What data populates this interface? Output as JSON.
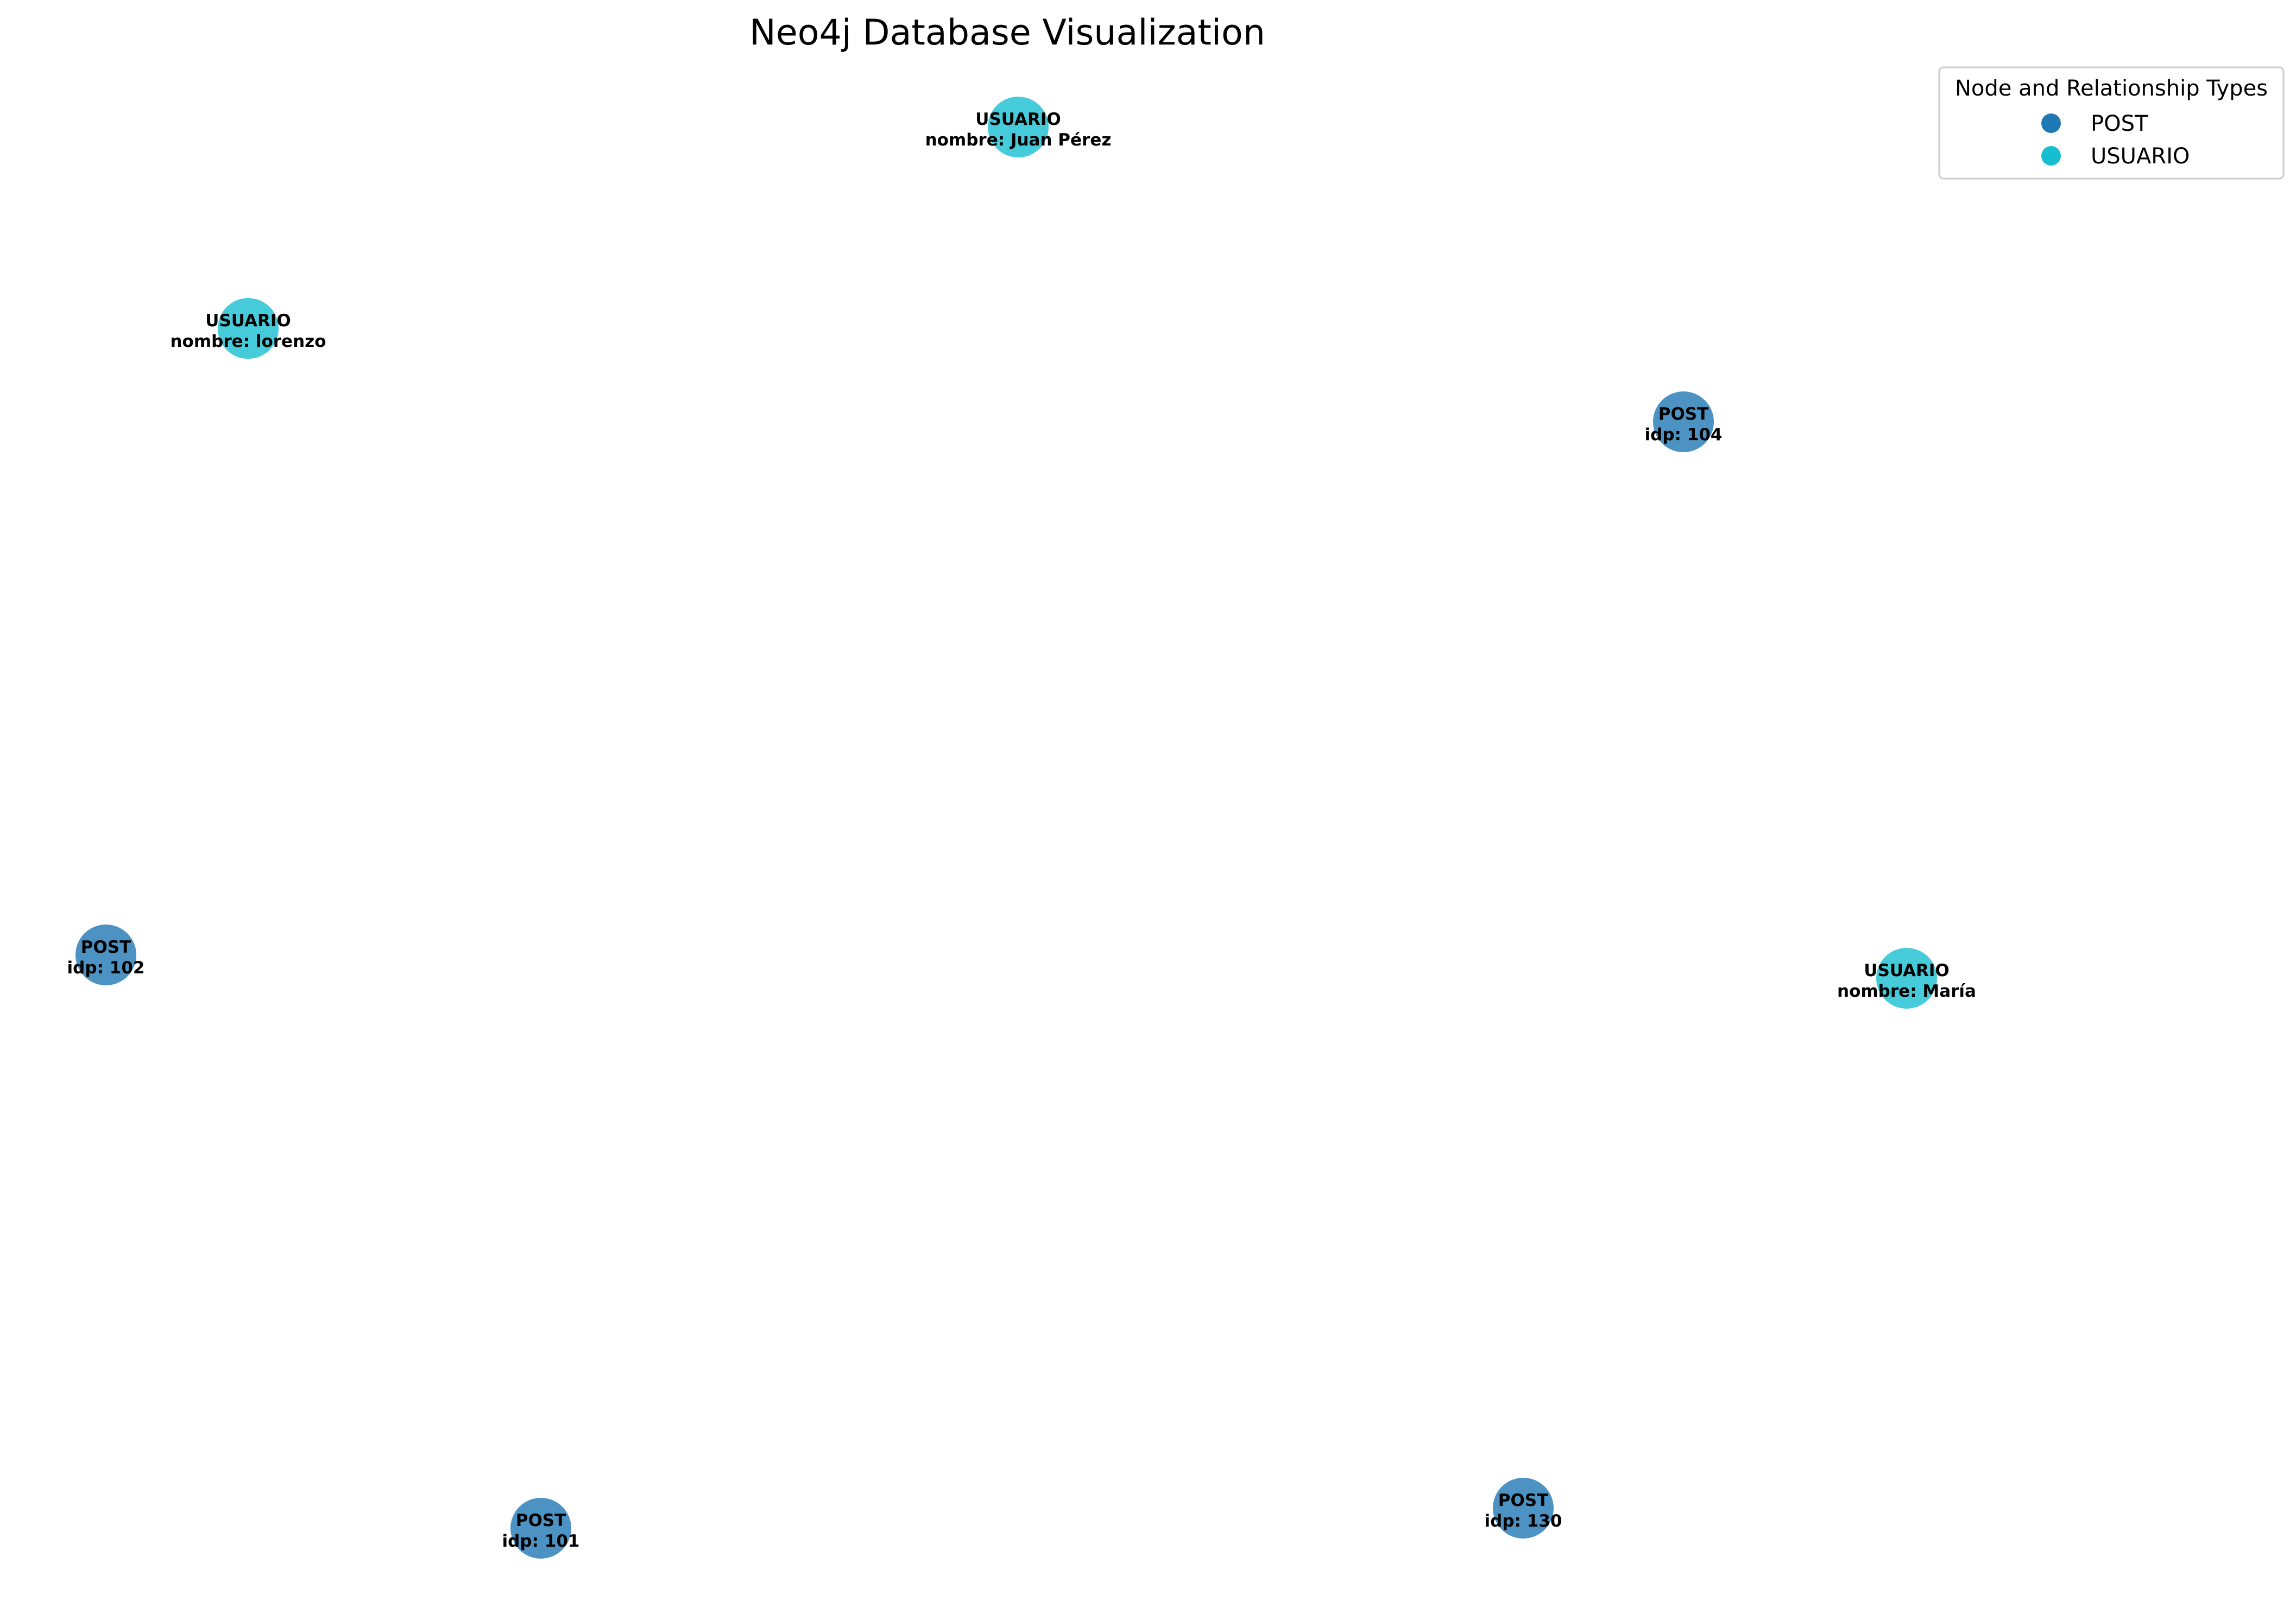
{
  "title": "Neo4j Database Visualization",
  "colors": {
    "POST": "#1f77b4",
    "USUARIO": "#17becf"
  },
  "legend": {
    "title": "Node and Relationship Types",
    "items": [
      {
        "label": "POST",
        "type": "POST"
      },
      {
        "label": "USUARIO",
        "type": "USUARIO"
      }
    ]
  },
  "nodes": [
    {
      "id": "usuario-juan",
      "type": "USUARIO",
      "line1": "USUARIO",
      "line2": "nombre: Juan Pérez"
    },
    {
      "id": "usuario-lorenzo",
      "type": "USUARIO",
      "line1": "USUARIO",
      "line2": "nombre: lorenzo"
    },
    {
      "id": "post-104",
      "type": "POST",
      "line1": "POST",
      "line2": "idp: 104"
    },
    {
      "id": "post-102",
      "type": "POST",
      "line1": "POST",
      "line2": "idp: 102"
    },
    {
      "id": "usuario-maria",
      "type": "USUARIO",
      "line1": "USUARIO",
      "line2": "nombre: María"
    },
    {
      "id": "post-130",
      "type": "POST",
      "line1": "POST",
      "line2": "idp: 130"
    },
    {
      "id": "post-101",
      "type": "POST",
      "line1": "POST",
      "line2": "idp: 101"
    }
  ]
}
